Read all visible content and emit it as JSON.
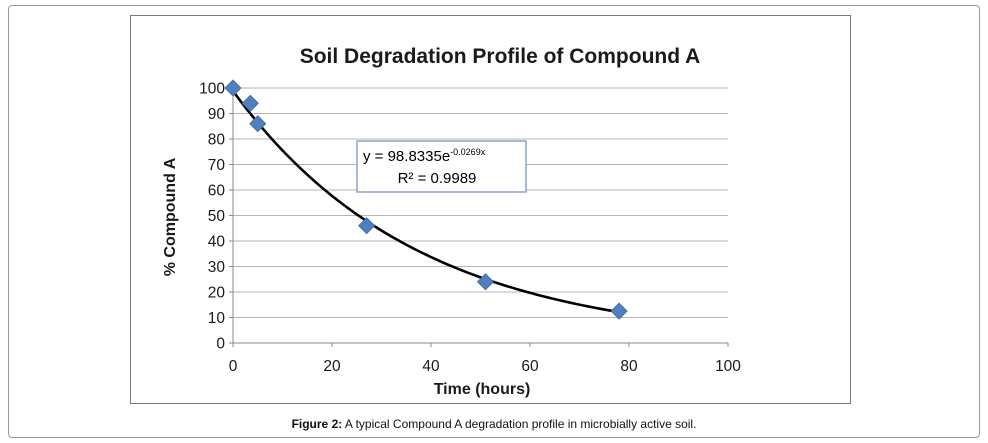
{
  "chart_data": {
    "type": "scatter",
    "title": "Soil Degradation Profile of Compound A",
    "xlabel": "Time (hours)",
    "ylabel": "% Compound A",
    "xlim": [
      0,
      100
    ],
    "ylim": [
      0,
      100
    ],
    "x_ticks": [
      "0",
      "20",
      "40",
      "60",
      "80",
      "100"
    ],
    "y_ticks": [
      "0",
      "10",
      "20",
      "30",
      "40",
      "50",
      "60",
      "70",
      "80",
      "90",
      "100"
    ],
    "grid": "horizontal",
    "series": [
      {
        "points": [
          {
            "x": 0,
            "y": 100
          },
          {
            "x": 3.5,
            "y": 94
          },
          {
            "x": 5,
            "y": 86
          },
          {
            "x": 27,
            "y": 46
          },
          {
            "x": 51,
            "y": 24
          },
          {
            "x": 78,
            "y": 12.5
          }
        ],
        "marker": "diamond",
        "color": "#4f7fbd"
      }
    ],
    "trendline": {
      "type": "exponential",
      "coefficient": 98.8335,
      "exponent": -0.0269,
      "x_range": [
        0,
        78
      ],
      "color": "#000000"
    },
    "annotation": {
      "equation_prefix": "y = 98.8335e",
      "equation_exponent": "-0.0269x",
      "r_squared": "R² = 0.9989"
    }
  },
  "caption": {
    "label": "Figure 2:",
    "text": " A typical Compound A degradation profile in microbially active soil."
  }
}
